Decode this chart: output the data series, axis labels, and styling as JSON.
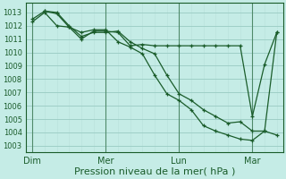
{
  "background_color": "#c5ece6",
  "grid_color_major": "#9ecfc7",
  "grid_color_minor": "#b8e0da",
  "line_color": "#1a5c2a",
  "xlabel": "Pression niveau de la mer( hPa )",
  "xlabel_fontsize": 8,
  "ytick_labels": [
    "1003",
    "1004",
    "1005",
    "1006",
    "1007",
    "1008",
    "1009",
    "1010",
    "1011",
    "1012",
    "1013"
  ],
  "ytick_values": [
    1003,
    1004,
    1005,
    1006,
    1007,
    1008,
    1009,
    1010,
    1011,
    1012,
    1013
  ],
  "ylim": [
    1002.5,
    1013.7
  ],
  "xtick_labels": [
    "Dim",
    "Mer",
    "Lun",
    "Mar"
  ],
  "xtick_positions": [
    0,
    24,
    48,
    72
  ],
  "vline_positions": [
    0,
    24,
    48,
    72
  ],
  "xlim": [
    -2,
    82
  ],
  "series1_x": [
    0,
    4,
    8,
    12,
    16,
    20,
    24,
    28,
    32,
    36,
    40,
    44,
    48,
    52,
    56,
    60,
    64,
    68,
    72,
    76,
    80
  ],
  "series1_y": [
    1012.5,
    1013.1,
    1013.0,
    1012.0,
    1011.2,
    1011.5,
    1011.5,
    1011.6,
    1010.8,
    1010.3,
    1009.9,
    1008.3,
    1006.9,
    1006.4,
    1005.7,
    1005.2,
    1004.7,
    1004.8,
    1004.1,
    1004.1,
    1003.8
  ],
  "series2_x": [
    0,
    4,
    8,
    12,
    16,
    20,
    24,
    28,
    32,
    36,
    40,
    44,
    48,
    52,
    56,
    60,
    64,
    68,
    72,
    76,
    80
  ],
  "series2_y": [
    1012.3,
    1013.0,
    1012.0,
    1011.9,
    1011.0,
    1011.6,
    1011.6,
    1011.5,
    1010.5,
    1010.6,
    1010.5,
    1010.5,
    1010.5,
    1010.5,
    1010.5,
    1010.5,
    1010.5,
    1010.5,
    1005.2,
    1009.1,
    1011.5
  ],
  "series3_x": [
    4,
    8,
    12,
    16,
    20,
    24,
    28,
    32,
    36,
    40,
    44,
    48,
    52,
    56,
    60,
    64,
    68,
    72,
    76,
    80
  ],
  "series3_y": [
    1013.1,
    1012.9,
    1011.9,
    1011.5,
    1011.7,
    1011.7,
    1010.8,
    1010.4,
    1009.9,
    1008.3,
    1006.9,
    1006.4,
    1005.7,
    1004.5,
    1004.1,
    1003.8,
    1003.5,
    1003.4,
    1004.1,
    1011.5
  ]
}
